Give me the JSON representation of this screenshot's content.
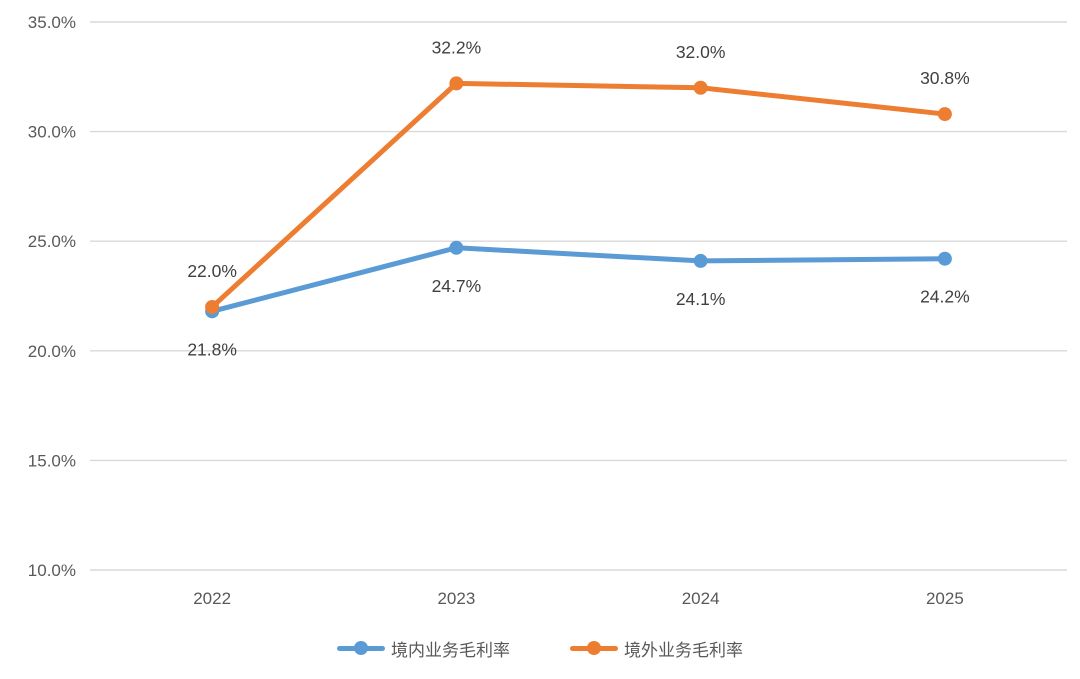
{
  "chart_data": {
    "type": "line",
    "categories": [
      "2022",
      "2023",
      "2024",
      "2025"
    ],
    "series": [
      {
        "name": "境内业务毛利率",
        "values": [
          21.8,
          24.7,
          24.1,
          24.2
        ],
        "point_labels": [
          "21.8%",
          "24.7%",
          "24.1%",
          "24.2%"
        ],
        "color": "#5B9BD5",
        "label_position": "below"
      },
      {
        "name": "境外业务毛利率",
        "values": [
          22.0,
          32.2,
          32.0,
          30.8
        ],
        "point_labels": [
          "22.0%",
          "32.2%",
          "32.0%",
          "30.8%"
        ],
        "color": "#ED7D31",
        "label_position": "above"
      }
    ],
    "y_axis": {
      "min": 10,
      "max": 35,
      "tick_step": 5,
      "tick_labels": [
        "10.0%",
        "15.0%",
        "20.0%",
        "25.0%",
        "30.0%",
        "35.0%"
      ]
    },
    "x_axis": {
      "tick_labels": [
        "2022",
        "2023",
        "2024",
        "2025"
      ]
    },
    "grid": true,
    "legend_position": "bottom",
    "colors": {
      "grid": "#D9D9D9",
      "tick_text": "#595959",
      "data_label_text": "#404040",
      "background": "#FFFFFF"
    }
  }
}
